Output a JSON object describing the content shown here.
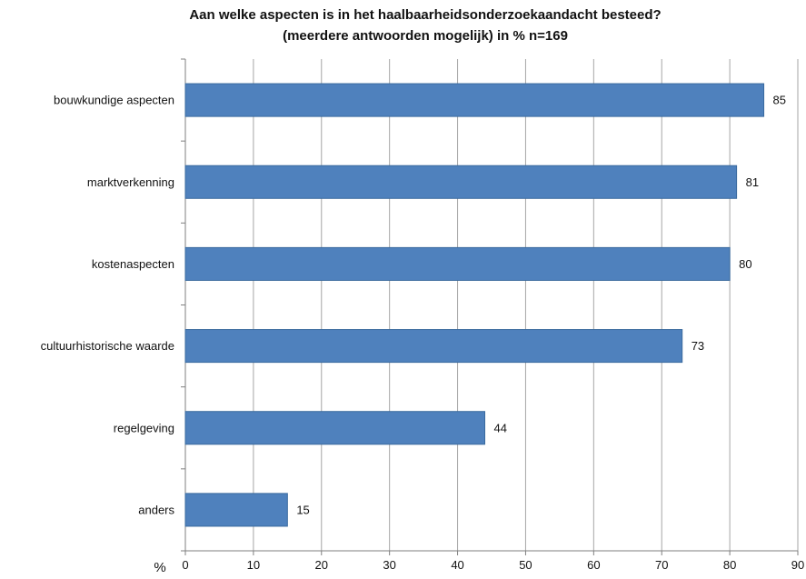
{
  "chart_data": {
    "type": "bar",
    "orientation": "horizontal",
    "title": "Aan welke aspecten is in het haalbaarheidsonderzoekaandacht besteed?",
    "subtitle": "(meerdere antwoorden mogelijk) in % n=169",
    "categories": [
      "bouwkundige aspecten",
      "marktverkenning",
      "kostenaspecten",
      "cultuurhistorische waarde",
      "regelgeving",
      "anders"
    ],
    "values": [
      85,
      81,
      80,
      73,
      44,
      15
    ],
    "xlabel": "%",
    "xlim": [
      0,
      90
    ],
    "xticks": [
      "0",
      "10",
      "20",
      "30",
      "40",
      "50",
      "60",
      "70",
      "80",
      "90"
    ],
    "grid": "vertical",
    "legend": "none",
    "bar_color": "#4F81BD",
    "bar_edge_color": "#3A6A9E",
    "grid_color": "#A6A6A6"
  }
}
